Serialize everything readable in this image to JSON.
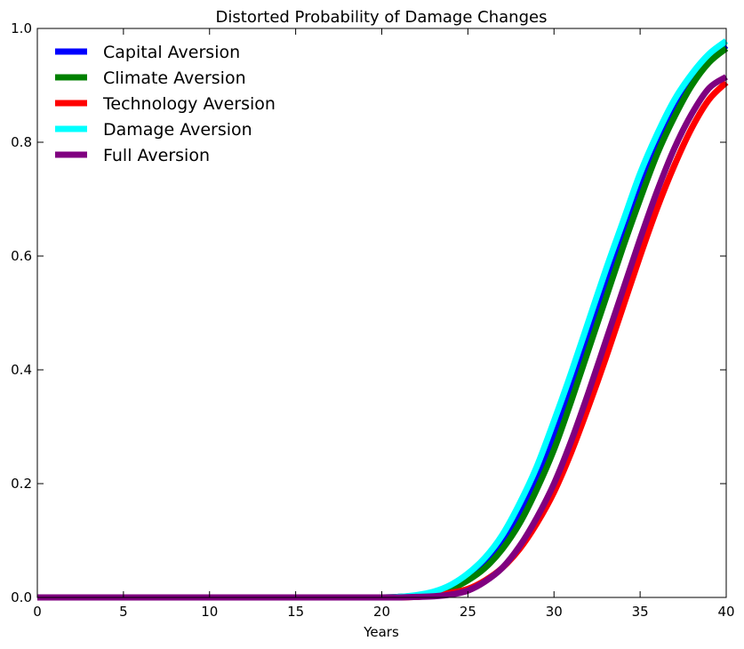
{
  "chart_data": {
    "type": "line",
    "title": "Distorted Probability of Damage Changes",
    "xlabel": "Years",
    "ylabel": "",
    "xlim": [
      0,
      40
    ],
    "ylim": [
      0,
      1.0
    ],
    "xticks": [
      0,
      5,
      10,
      15,
      20,
      25,
      30,
      35,
      40
    ],
    "yticks": [
      0.0,
      0.2,
      0.4,
      0.6,
      0.8,
      1.0
    ],
    "xtick_labels": [
      "0",
      "5",
      "10",
      "15",
      "20",
      "25",
      "30",
      "35",
      "40"
    ],
    "ytick_labels": [
      "0.0",
      "0.2",
      "0.4",
      "0.6",
      "0.8",
      "1.0"
    ],
    "legend_position": "top-left",
    "grid": false,
    "x": [
      0,
      5,
      10,
      15,
      20,
      21,
      22,
      23,
      24,
      25,
      26,
      27,
      28,
      29,
      30,
      31,
      32,
      33,
      34,
      35,
      36,
      37,
      38,
      39,
      40
    ],
    "series": [
      {
        "name": "Capital Aversion",
        "color": "#0000ff",
        "values": [
          0,
          0,
          0,
          0,
          0,
          0.001,
          0.003,
          0.008,
          0.018,
          0.035,
          0.06,
          0.095,
          0.145,
          0.205,
          0.28,
          0.365,
          0.455,
          0.545,
          0.635,
          0.72,
          0.795,
          0.86,
          0.91,
          0.945,
          0.97
        ]
      },
      {
        "name": "Climate Aversion",
        "color": "#008000",
        "values": [
          0,
          0,
          0,
          0,
          0,
          0.001,
          0.003,
          0.007,
          0.015,
          0.03,
          0.052,
          0.085,
          0.13,
          0.19,
          0.26,
          0.345,
          0.435,
          0.525,
          0.615,
          0.7,
          0.78,
          0.845,
          0.9,
          0.94,
          0.965
        ]
      },
      {
        "name": "Technology Aversion",
        "color": "#ff0000",
        "values": [
          0,
          0,
          0,
          0,
          0,
          0,
          0.001,
          0.003,
          0.008,
          0.015,
          0.03,
          0.052,
          0.085,
          0.13,
          0.185,
          0.255,
          0.335,
          0.42,
          0.51,
          0.6,
          0.685,
          0.76,
          0.825,
          0.875,
          0.905
        ]
      },
      {
        "name": "Damage Aversion",
        "color": "#00ffff",
        "values": [
          0,
          0,
          0,
          0,
          0,
          0.001,
          0.004,
          0.01,
          0.022,
          0.042,
          0.07,
          0.11,
          0.165,
          0.23,
          0.31,
          0.395,
          0.485,
          0.575,
          0.66,
          0.745,
          0.815,
          0.875,
          0.92,
          0.955,
          0.978
        ]
      },
      {
        "name": "Full Aversion",
        "color": "#800080",
        "values": [
          0,
          0,
          0,
          0,
          0,
          0,
          0.001,
          0.002,
          0.005,
          0.012,
          0.028,
          0.052,
          0.09,
          0.14,
          0.2,
          0.275,
          0.36,
          0.45,
          0.54,
          0.63,
          0.715,
          0.79,
          0.85,
          0.895,
          0.915
        ]
      }
    ]
  }
}
